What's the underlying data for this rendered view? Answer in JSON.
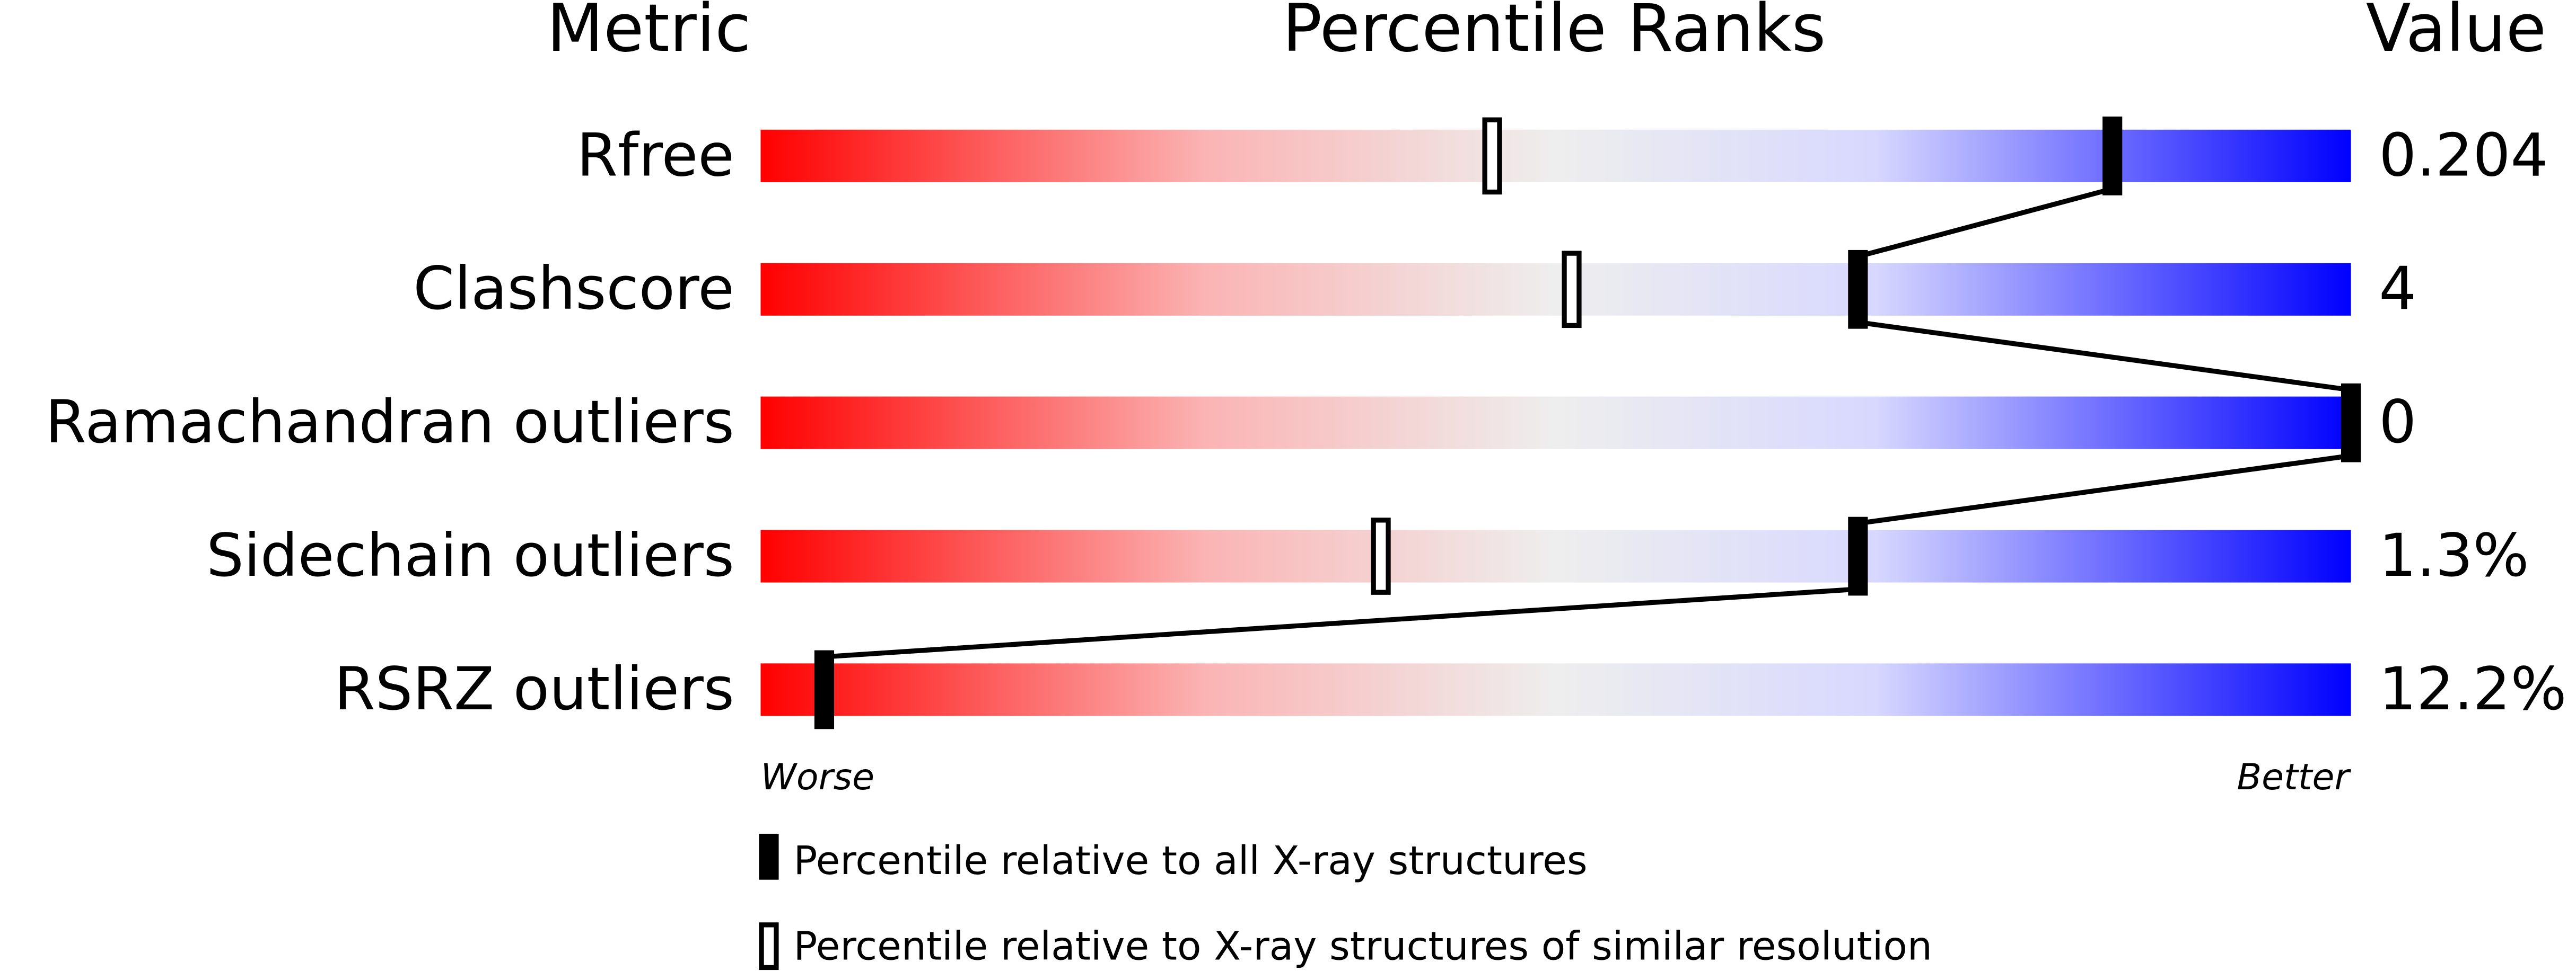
{
  "header": {
    "metric": "Metric",
    "percentile": "Percentile Ranks",
    "value": "Value"
  },
  "rows": [
    {
      "metric": "Rfree",
      "value": "0.204",
      "percentile_all": 85,
      "percentile_similar": 46
    },
    {
      "metric": "Clashscore",
      "value": "4",
      "percentile_all": 69,
      "percentile_similar": 51
    },
    {
      "metric": "Ramachandran outliers",
      "value": "0",
      "percentile_all": 100,
      "percentile_similar": 100
    },
    {
      "metric": "Sidechain outliers",
      "value": "1.3%",
      "percentile_all": 69,
      "percentile_similar": 39
    },
    {
      "metric": "RSRZ outliers",
      "value": "12.2%",
      "percentile_all": 4,
      "percentile_similar": null
    }
  ],
  "scale": {
    "worse": "Worse",
    "better": "Better",
    "range": [
      0,
      100
    ]
  },
  "legend": {
    "all": "Percentile relative to all X-ray structures",
    "similar": "Percentile relative to X-ray structures of similar resolution"
  }
}
